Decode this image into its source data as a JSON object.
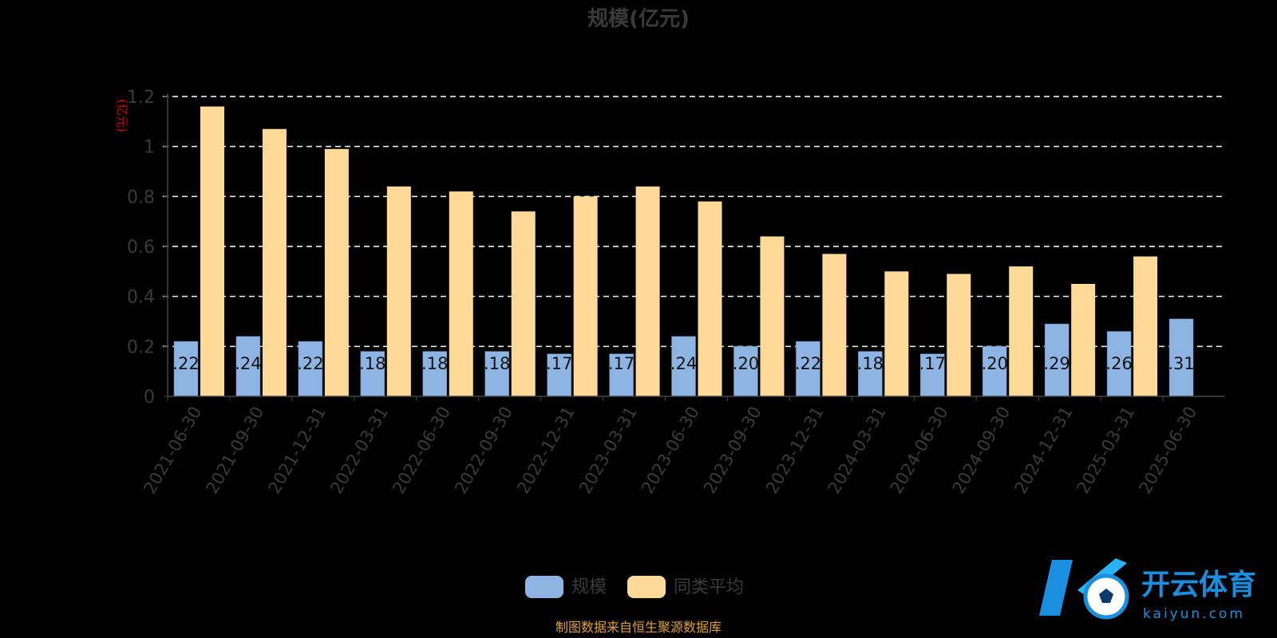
{
  "chart_data": {
    "type": "bar",
    "title": "规模(亿元)",
    "ylabel": "(亿元)",
    "ylim": [
      0,
      1.2
    ],
    "yticks": [
      "0",
      "0.2",
      "0.4",
      "0.6",
      "0.8",
      "1",
      "1.2"
    ],
    "grid": true,
    "legend_position": "bottom",
    "categories": [
      "2021-06-30",
      "2021-09-30",
      "2021-12-31",
      "2022-03-31",
      "2022-06-30",
      "2022-09-30",
      "2022-12-31",
      "2023-03-31",
      "2023-06-30",
      "2023-09-30",
      "2023-12-31",
      "2024-03-31",
      "2024-06-30",
      "2024-09-30",
      "2024-12-31",
      "2025-03-31",
      "2025-06-30"
    ],
    "series": [
      {
        "name": "规模",
        "color": "#8eb4e3",
        "values": [
          0.22,
          0.24,
          0.22,
          0.18,
          0.18,
          0.18,
          0.17,
          0.17,
          0.24,
          0.2,
          0.22,
          0.18,
          0.17,
          0.2,
          0.29,
          0.26,
          0.31
        ],
        "labels": [
          ".22",
          ".24",
          ".22",
          ".18",
          ".18",
          ".18",
          ".17",
          ".17",
          ".24",
          ".20",
          ".22",
          ".18",
          ".17",
          ".20",
          ".29",
          ".26",
          ".31"
        ]
      },
      {
        "name": "同类平均",
        "color": "#ffd998",
        "values": [
          1.16,
          1.07,
          0.99,
          0.84,
          0.82,
          0.74,
          0.8,
          0.84,
          0.78,
          0.64,
          0.57,
          0.5,
          0.49,
          0.52,
          0.45,
          0.56,
          null
        ]
      }
    ]
  },
  "footer": {
    "source": "制图数据来自恒生聚源数据库"
  },
  "watermark": {
    "brand": "开云体育",
    "url": "kaiyun.com"
  }
}
